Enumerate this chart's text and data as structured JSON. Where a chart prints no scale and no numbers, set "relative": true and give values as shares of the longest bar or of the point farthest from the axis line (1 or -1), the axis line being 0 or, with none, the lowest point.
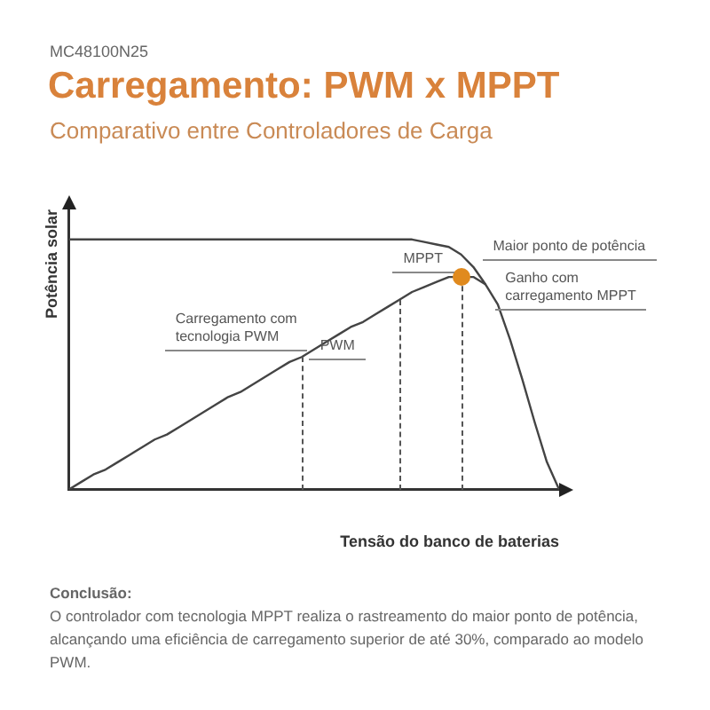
{
  "chart_data": {
    "type": "line",
    "title": "Carregamento: PWM x MPPT",
    "subtitle": "Comparativo entre Controladores de Carga",
    "xlabel": "Tensão do banco de baterias",
    "ylabel": "Potência solar",
    "relative": true,
    "grid": false,
    "legend": false,
    "marker": "none",
    "line_style": "solid",
    "categories": [
      null,
      null,
      null,
      null,
      null,
      null,
      null,
      null,
      null,
      null,
      null,
      null,
      null,
      null,
      null,
      null,
      null,
      null,
      null,
      null,
      null,
      null,
      null,
      null,
      null,
      null,
      null,
      null,
      null,
      null,
      null,
      null,
      null,
      null,
      null,
      null,
      null,
      null,
      null,
      null,
      null
    ],
    "series": [
      {
        "color": "#444444",
        "values": [
          1,
          1,
          1,
          1,
          1,
          1,
          1,
          1,
          1,
          1,
          1,
          1,
          1,
          1,
          1,
          1,
          1,
          1,
          1,
          1,
          1,
          1,
          1,
          1,
          1,
          1,
          1,
          1,
          1,
          0.99,
          0.98,
          0.97,
          0.94,
          0.89,
          0.82,
          0.74,
          0.6,
          0.44,
          0.27,
          0.11,
          0
        ]
      },
      {
        "color": "#444444",
        "values": [
          0,
          0.03,
          0.06,
          0.08,
          0.11,
          0.14,
          0.17,
          0.2,
          0.22,
          0.25,
          0.28,
          0.31,
          0.34,
          0.37,
          0.39,
          0.42,
          0.45,
          0.48,
          0.51,
          0.53,
          0.56,
          0.59,
          0.62,
          0.65,
          0.67,
          0.7,
          0.73,
          0.76,
          0.79,
          0.81,
          0.83,
          0.85,
          0.85,
          0.85,
          0.82,
          null,
          null,
          null,
          null,
          null,
          null
        ]
      }
    ],
    "annotations": [
      "MC48100N25",
      "Maior ponto de potência",
      "Ganho com\ncarregamento MPPT",
      "Carregamento com\ntecnologia PWM",
      "MPPT",
      "PWM",
      "Conclusão:",
      "O controlador com tecnologia MPPT realiza o rastreamento do maior ponto de potência, alcançando uma eficiência de carregamento superior de até 30%, comparado ao modelo PWM."
    ]
  }
}
